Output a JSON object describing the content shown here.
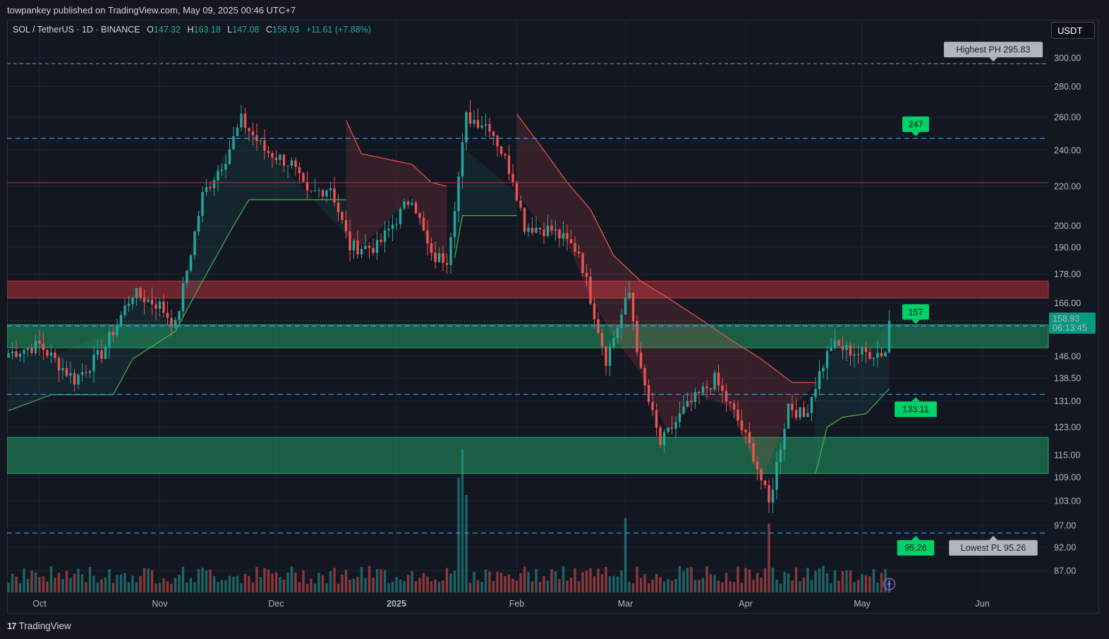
{
  "publisher": "towpankey published on TradingView.com, May 09, 2025 00:46 UTC+7",
  "symbol_line": {
    "symbol": "SOL / TetherUS · 1D · BINANCE",
    "o_label": "O",
    "o_value": "147.32",
    "h_label": "H",
    "h_value": "163.18",
    "l_label": "L",
    "l_value": "147.08",
    "c_label": "C",
    "c_value": "158.93",
    "change": "+11.61 (+7.88%)"
  },
  "currency_button": "USDT",
  "brand": "TradingView",
  "colors": {
    "up": "#26a69a",
    "down": "#ef5350",
    "dashed_level": "#2196f3",
    "green_zone": "#1f8a57",
    "red_zone": "#8c2b35",
    "green_label": "#00d26a",
    "gray_label": "#b2b5be",
    "price_tag": "#089981"
  },
  "chart_data": {
    "type": "candlestick",
    "title": "SOL / TetherUS · 1D · BINANCE",
    "scale": "log",
    "y_ticks": [
      300,
      280,
      260,
      240,
      220,
      200,
      190,
      178,
      166,
      146,
      138.5,
      131,
      123,
      115,
      109,
      103,
      97,
      92,
      87
    ],
    "y_tick_labels": [
      "300.00",
      "280.00",
      "260.00",
      "240.00",
      "220.00",
      "200.00",
      "190.00",
      "178.00",
      "166.00",
      "146.00",
      "138.50",
      "131.00",
      "123.00",
      "115.00",
      "109.00",
      "103.00",
      "97.00",
      "92.00",
      "87.00"
    ],
    "x_tick_labels": [
      "Oct",
      "Nov",
      "Dec",
      "2025",
      "Feb",
      "Mar",
      "Apr",
      "May",
      "Jun"
    ],
    "x_tick_dates": [
      "2024-10-01",
      "2024-11-01",
      "2024-12-01",
      "2025-01-01",
      "2025-02-01",
      "2025-03-01",
      "2025-04-01",
      "2025-05-01",
      "2025-06-01"
    ],
    "last_date": "2025-05-08",
    "last_price": "158.93",
    "countdown": "06:13:45",
    "levels": [
      {
        "value": 295.83,
        "label": "Highest PH 295.83",
        "style": "dashed-gray"
      },
      {
        "value": 247,
        "label": "247",
        "style": "dashed-blue"
      },
      {
        "value": 222,
        "label": "",
        "style": "solid-red"
      },
      {
        "value": 157,
        "label": "157",
        "style": "dashed-blue"
      },
      {
        "value": 133.11,
        "label": "133.11",
        "style": "dashed-blue"
      },
      {
        "value": 95.26,
        "label": "95.26",
        "style": "dashed-blue"
      },
      {
        "value": 95.26,
        "label": "Lowest PL 95.26",
        "style": "marker-gray"
      }
    ],
    "zones": [
      {
        "kind": "supply",
        "from": 168,
        "to": 175
      },
      {
        "kind": "demand",
        "from": 149,
        "to": 157.5
      },
      {
        "kind": "demand",
        "from": 110,
        "to": 120
      }
    ],
    "closes": [
      {
        "date": "2024-09-23",
        "close": 147
      },
      {
        "date": "2024-10-01",
        "close": 150
      },
      {
        "date": "2024-10-10",
        "close": 138
      },
      {
        "date": "2024-10-17",
        "close": 147
      },
      {
        "date": "2024-10-25",
        "close": 170
      },
      {
        "date": "2024-11-01",
        "close": 165
      },
      {
        "date": "2024-11-05",
        "close": 157
      },
      {
        "date": "2024-11-12",
        "close": 215
      },
      {
        "date": "2024-11-18",
        "close": 236
      },
      {
        "date": "2024-11-22",
        "close": 258
      },
      {
        "date": "2024-11-28",
        "close": 240
      },
      {
        "date": "2024-12-05",
        "close": 232
      },
      {
        "date": "2024-12-09",
        "close": 215
      },
      {
        "date": "2024-12-15",
        "close": 220
      },
      {
        "date": "2024-12-20",
        "close": 190
      },
      {
        "date": "2024-12-27",
        "close": 190
      },
      {
        "date": "2025-01-05",
        "close": 215
      },
      {
        "date": "2025-01-10",
        "close": 185
      },
      {
        "date": "2025-01-14",
        "close": 185
      },
      {
        "date": "2025-01-17",
        "close": 225
      },
      {
        "date": "2025-01-19",
        "close": 260
      },
      {
        "date": "2025-01-25",
        "close": 255
      },
      {
        "date": "2025-01-31",
        "close": 225
      },
      {
        "date": "2025-02-03",
        "close": 200
      },
      {
        "date": "2025-02-10",
        "close": 198
      },
      {
        "date": "2025-02-17",
        "close": 188
      },
      {
        "date": "2025-02-24",
        "close": 145
      },
      {
        "date": "2025-03-02",
        "close": 170
      },
      {
        "date": "2025-03-05",
        "close": 140
      },
      {
        "date": "2025-03-10",
        "close": 118
      },
      {
        "date": "2025-03-16",
        "close": 128
      },
      {
        "date": "2025-03-24",
        "close": 138
      },
      {
        "date": "2025-03-30",
        "close": 125
      },
      {
        "date": "2025-04-03",
        "close": 115
      },
      {
        "date": "2025-04-07",
        "close": 102
      },
      {
        "date": "2025-04-12",
        "close": 130
      },
      {
        "date": "2025-04-16",
        "close": 126
      },
      {
        "date": "2025-04-20",
        "close": 140
      },
      {
        "date": "2025-04-23",
        "close": 150
      },
      {
        "date": "2025-04-30",
        "close": 147
      },
      {
        "date": "2025-05-07",
        "close": 147.32
      },
      {
        "date": "2025-05-08",
        "close": 158.93
      }
    ],
    "supertrend": [
      {
        "date": "2024-09-23",
        "value": 128,
        "trend": "up"
      },
      {
        "date": "2024-10-04",
        "value": 133,
        "trend": "up"
      },
      {
        "date": "2024-10-20",
        "value": 133,
        "trend": "up"
      },
      {
        "date": "2024-10-25",
        "value": 145,
        "trend": "up"
      },
      {
        "date": "2024-11-05",
        "value": 155,
        "trend": "up"
      },
      {
        "date": "2024-11-12",
        "value": 175,
        "trend": "up"
      },
      {
        "date": "2024-11-20",
        "value": 200,
        "trend": "up"
      },
      {
        "date": "2024-11-24",
        "value": 213,
        "trend": "up"
      },
      {
        "date": "2024-12-19",
        "value": 213,
        "trend": "up"
      },
      {
        "date": "2024-12-19",
        "value": 258,
        "trend": "down"
      },
      {
        "date": "2024-12-23",
        "value": 238,
        "trend": "down"
      },
      {
        "date": "2025-01-05",
        "value": 232,
        "trend": "down"
      },
      {
        "date": "2025-01-10",
        "value": 222,
        "trend": "down"
      },
      {
        "date": "2025-01-14",
        "value": 220,
        "trend": "down"
      },
      {
        "date": "2025-01-16",
        "value": 185,
        "trend": "up"
      },
      {
        "date": "2025-01-18",
        "value": 205,
        "trend": "up"
      },
      {
        "date": "2025-02-01",
        "value": 205,
        "trend": "up"
      },
      {
        "date": "2025-02-01",
        "value": 262,
        "trend": "down"
      },
      {
        "date": "2025-02-08",
        "value": 240,
        "trend": "down"
      },
      {
        "date": "2025-02-14",
        "value": 222,
        "trend": "down"
      },
      {
        "date": "2025-02-20",
        "value": 208,
        "trend": "down"
      },
      {
        "date": "2025-02-26",
        "value": 186,
        "trend": "down"
      },
      {
        "date": "2025-03-05",
        "value": 175,
        "trend": "down"
      },
      {
        "date": "2025-03-12",
        "value": 168,
        "trend": "down"
      },
      {
        "date": "2025-03-20",
        "value": 160,
        "trend": "down"
      },
      {
        "date": "2025-03-28",
        "value": 152,
        "trend": "down"
      },
      {
        "date": "2025-04-05",
        "value": 145,
        "trend": "down"
      },
      {
        "date": "2025-04-13",
        "value": 137,
        "trend": "down"
      },
      {
        "date": "2025-04-19",
        "value": 137,
        "trend": "down"
      },
      {
        "date": "2025-04-19",
        "value": 110,
        "trend": "up"
      },
      {
        "date": "2025-04-22",
        "value": 123,
        "trend": "up"
      },
      {
        "date": "2025-04-26",
        "value": 126,
        "trend": "up"
      },
      {
        "date": "2025-05-02",
        "value": 127,
        "trend": "up"
      },
      {
        "date": "2025-05-08",
        "value": 135,
        "trend": "up"
      }
    ],
    "volume_spikes": [
      {
        "date": "2025-01-18",
        "relative": 1.0
      },
      {
        "date": "2025-01-17",
        "relative": 0.8
      },
      {
        "date": "2025-01-19",
        "relative": 0.68
      },
      {
        "date": "2025-04-07",
        "relative": 0.48
      },
      {
        "date": "2025-03-01",
        "relative": 0.52
      }
    ]
  }
}
